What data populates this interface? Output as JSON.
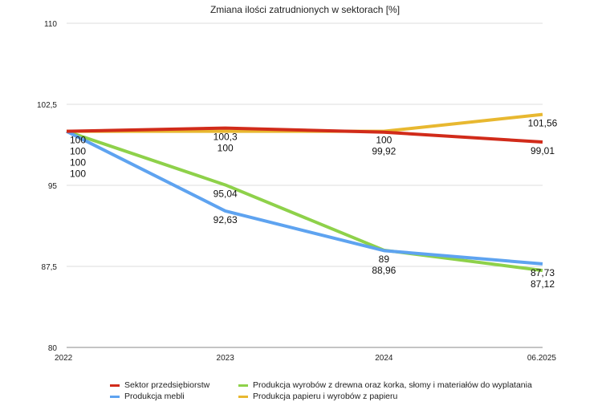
{
  "chart_data": {
    "type": "line",
    "title": "Zmiana ilości zatrudnionych w sektorach [%]",
    "categories": [
      "2022",
      "2023",
      "2024",
      "06.2025"
    ],
    "ylim": [
      80,
      110
    ],
    "yticks": [
      "80",
      "87,5",
      "95",
      "102,5",
      "110"
    ],
    "ytick_values": [
      80,
      87.5,
      95,
      102.5,
      110
    ],
    "grid": true,
    "legend_position": "bottom",
    "series": [
      {
        "name": "Produkcja papieru i wyrobów z papieru",
        "color": "#E8B830",
        "values": [
          100,
          100,
          100,
          101.56
        ],
        "labels": [
          "100",
          "100",
          "100",
          "101,56"
        ]
      },
      {
        "name": "Produkcja wyrobów z drewna oraz korka, słomy i materiałów do wyplatania",
        "color": "#8ED14A",
        "values": [
          100,
          95.04,
          89,
          87.12
        ],
        "labels": [
          "100",
          "95,04",
          "89",
          "87,12"
        ]
      },
      {
        "name": "Produkcja mebli",
        "color": "#5EA3F0",
        "values": [
          100,
          92.63,
          88.96,
          87.73
        ],
        "labels": [
          "100",
          "92,63",
          "88,96",
          "87,73"
        ]
      },
      {
        "name": "Sektor przedsiębiorstw",
        "color": "#D12B1A",
        "values": [
          100,
          100.3,
          99.92,
          99.01
        ],
        "labels": [
          "100",
          "100,3",
          "99,92",
          "99,01"
        ]
      }
    ],
    "legend_order": [
      3,
      1,
      2,
      0
    ]
  }
}
